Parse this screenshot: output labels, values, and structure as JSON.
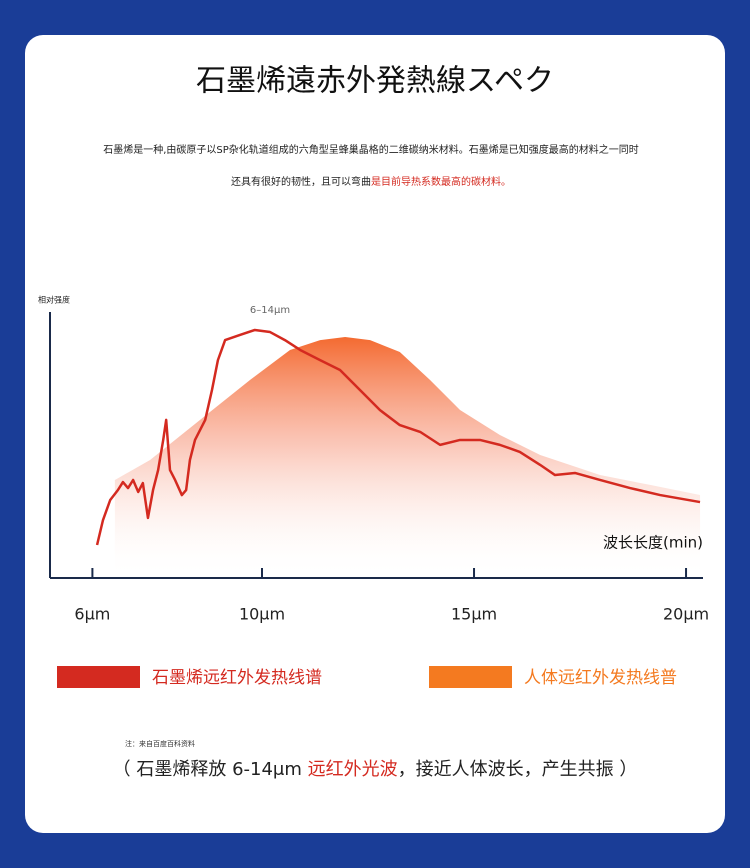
{
  "header": {
    "title": "石墨烯遠赤外発熱線スペク",
    "description_line1": "石墨烯是一种,由碳原子以SP杂化轨道组成的六角型呈蜂巢晶格的二维碳纳米材料。石墨烯是已知强度最高的材料之一同时",
    "description_line2": "还具有很好的韧性，且可以弯曲",
    "description_highlight": "是目前导热系数最高的碳材料。"
  },
  "chart_data": {
    "type": "line",
    "ylabel": "相对强度",
    "xlabel": "波长长度(min)",
    "annotation": "6–14μm",
    "xlim": [
      5,
      20.4
    ],
    "ylim": [
      0,
      100
    ],
    "xticks": [
      {
        "value": 6,
        "label": "6μm"
      },
      {
        "value": 10,
        "label": "10μm"
      },
      {
        "value": 15,
        "label": "15μm"
      },
      {
        "value": 20,
        "label": "20μm"
      }
    ],
    "series": [
      {
        "name": "石墨烯远红外发热线谱",
        "color": "#d42a20",
        "style": "line",
        "x": [
          6.11,
          6.25,
          6.42,
          6.6,
          6.72,
          6.84,
          6.96,
          7.08,
          7.19,
          7.31,
          7.43,
          7.55,
          7.67,
          7.74,
          7.83,
          7.95,
          8.11,
          8.21,
          8.3,
          8.42,
          8.66,
          8.82,
          8.96,
          9.13,
          9.48,
          9.83,
          10.19,
          10.54,
          10.9,
          11.37,
          11.84,
          12.31,
          12.78,
          13.25,
          13.73,
          14.2,
          14.67,
          15.14,
          15.61,
          16.08,
          16.56,
          16.91,
          17.38,
          17.97,
          18.68,
          19.39,
          20.33
        ],
        "values": [
          12.7,
          22.3,
          30,
          33.8,
          36.9,
          34.6,
          37.7,
          33.1,
          36.5,
          23.1,
          33.8,
          41.5,
          53.1,
          60.8,
          41.5,
          37.7,
          31.9,
          33.8,
          45.4,
          53.1,
          60.8,
          72.3,
          83.8,
          91.5,
          93.5,
          95.4,
          94.6,
          91.5,
          87.7,
          83.8,
          80,
          72.3,
          64.6,
          58.8,
          56.2,
          51.2,
          53.1,
          53.1,
          51.2,
          48.5,
          43.5,
          39.6,
          40.4,
          37.7,
          34.6,
          31.9,
          29.2
        ]
      },
      {
        "name": "人体远红外发热线普",
        "color": "#f47a20",
        "style": "area",
        "x": [
          6.53,
          7.36,
          8.54,
          9.72,
          10.66,
          11.37,
          11.96,
          12.55,
          13.25,
          13.96,
          14.67,
          15.61,
          16.56,
          17.97,
          19.15,
          20.33
        ],
        "values": [
          37.7,
          45.4,
          60.8,
          76.2,
          87.7,
          91.5,
          92.7,
          91.5,
          86.9,
          76.2,
          64.6,
          55,
          47.3,
          39.6,
          35.8,
          31.9
        ]
      }
    ]
  },
  "footer": {
    "note": "注：来自百度百科资料",
    "caption_start": "（ 石墨烯释放 6-14μm ",
    "caption_highlight": "远红外光波",
    "caption_end": "，接近人体波长，产生共振 ）"
  }
}
